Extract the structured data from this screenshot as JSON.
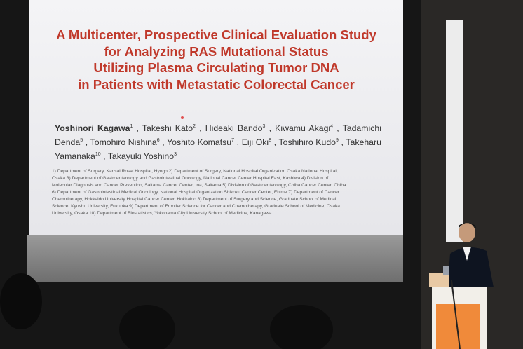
{
  "slide": {
    "title_lines": [
      "A Multicenter, Prospective Clinical Evaluation Study",
      "for Analyzing RAS Mutational Status",
      "Utilizing Plasma Circulating Tumor DNA",
      "in Patients with Metastatic Colorectal Cancer"
    ],
    "authors": [
      {
        "name": "Yoshinori Kagawa",
        "sup": "1"
      },
      {
        "name": "Takeshi Kato",
        "sup": "2"
      },
      {
        "name": "Hideaki Bando",
        "sup": "3"
      },
      {
        "name": "Kiwamu Akagi",
        "sup": "4"
      },
      {
        "name": "Tadamichi Denda",
        "sup": "5"
      },
      {
        "name": "Tomohiro Nishina",
        "sup": "6"
      },
      {
        "name": "Yoshito Komatsu",
        "sup": "7"
      },
      {
        "name": "Eiji Oki",
        "sup": "8"
      },
      {
        "name": "Toshihiro Kudo",
        "sup": "9"
      },
      {
        "name": "Takeharu Yamanaka",
        "sup": "10"
      },
      {
        "name": "Takayuki Yoshino",
        "sup": "3"
      }
    ],
    "affiliation_lines": [
      "1) Department of Surgery, Kansai Rosai Hospital, Hyogo 2) Department of Surgery, National Hospital Organization Osaka National Hospital,",
      "Osaka 3) Department of Gastroenterology and Gastrointestinal Oncology, National Cancer Center Hospital East, Kashiwa 4) Division of",
      "Molecular Diagnosis and Cancer Prevention, Saitama Cancer Center, Ina, Saitama 5) Division of Gastroenterology, Chiba Cancer Center, Chiba",
      "6) Department of Gastrointestinal Medical Oncology, National Hospital Organization Shikoku Cancer Center, Ehime 7) Department of Cancer",
      "Chemotherapy, Hokkaido University Hospital Cancer Center, Hokkaido 8) Department of Surgery and Science, Graduate School of Medical",
      "Science, Kyushu University, Fukuoka 9) Department of Frontier Science for Cancer and Chemotherapy, Graduate School of Medicine, Osaka",
      "University, Osaka 10) Department of Biostatistics, Yokohama City University School of Medicine, Kanagawa"
    ]
  }
}
